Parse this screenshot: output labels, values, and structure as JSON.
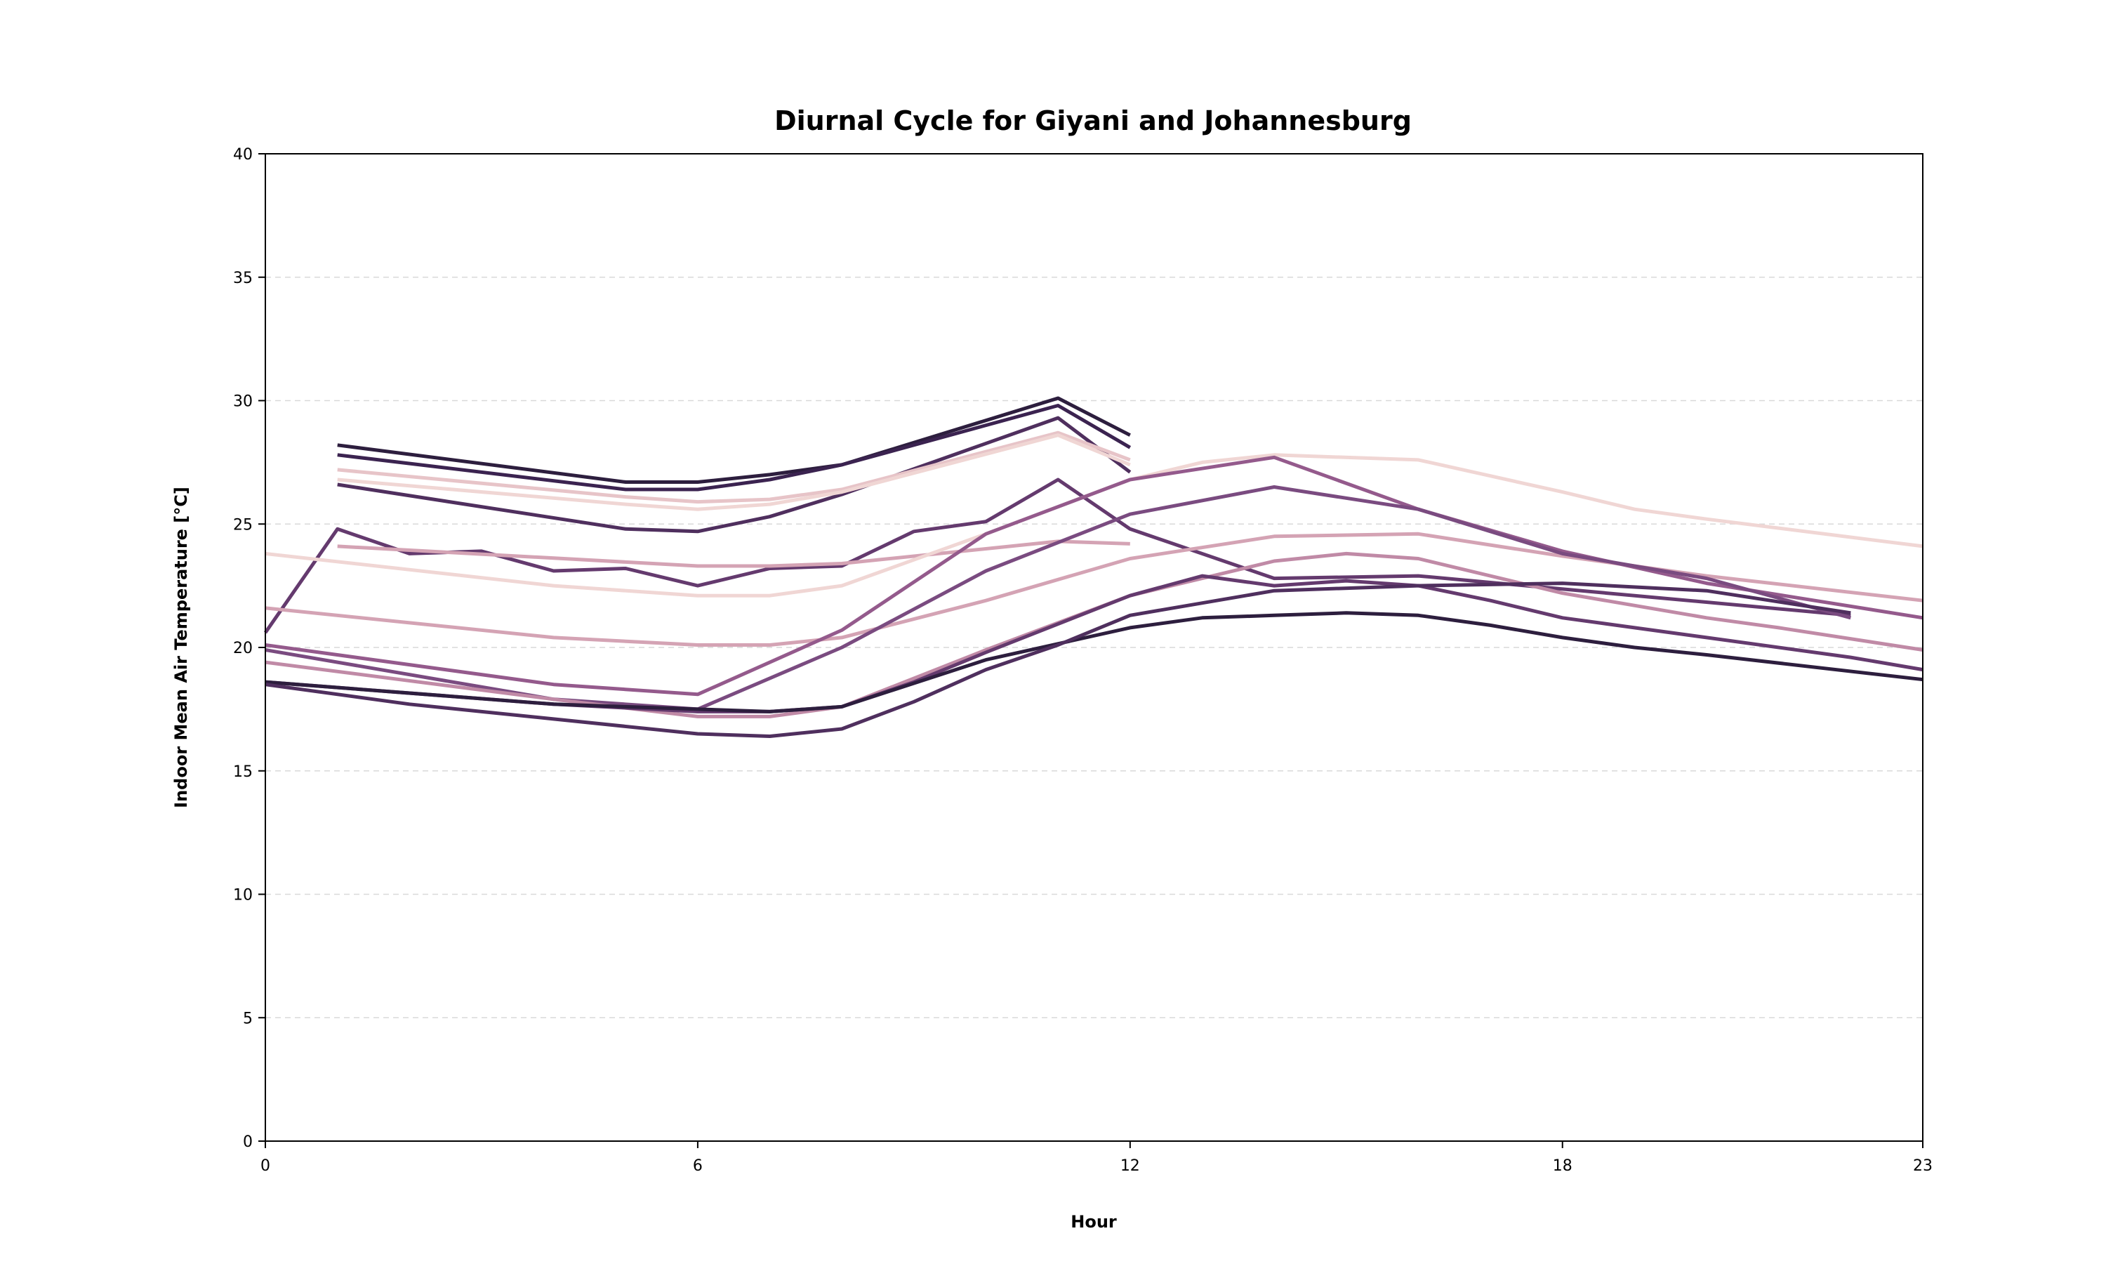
{
  "chart_data": {
    "type": "line",
    "title": "Diurnal Cycle for Giyani and Johannesburg",
    "xlabel": "Hour",
    "ylabel": "Indoor Mean Air Temperature [°C]",
    "xlim": [
      0,
      23
    ],
    "ylim": [
      0,
      40
    ],
    "xticks": [
      0,
      6,
      12,
      18,
      23
    ],
    "yticks": [
      0,
      5,
      10,
      15,
      20,
      25,
      30,
      35,
      40
    ],
    "grid": "horizontal-dashed",
    "colors": [
      "#2d1e3e",
      "#3b2350",
      "#4f2f5e",
      "#643a6e",
      "#7a4b80",
      "#945a8c",
      "#a86a95",
      "#c08aa6",
      "#d4a3b4",
      "#e7c4c8",
      "#f0d6d4"
    ],
    "series": [
      {
        "color": "#2d1e3e",
        "x": [
          1,
          5,
          6,
          7,
          8,
          11,
          12
        ],
        "y": [
          28.2,
          26.7,
          26.7,
          27.0,
          27.4,
          30.1,
          28.6
        ]
      },
      {
        "color": "#3b2350",
        "x": [
          1,
          5,
          6,
          7,
          8,
          11,
          12
        ],
        "y": [
          27.8,
          26.4,
          26.4,
          26.8,
          27.4,
          29.8,
          28.1
        ]
      },
      {
        "color": "#4f2f5e",
        "x": [
          1,
          5,
          6,
          7,
          8,
          11,
          12
        ],
        "y": [
          26.6,
          24.8,
          24.7,
          25.3,
          26.2,
          29.3,
          27.1
        ]
      },
      {
        "color": "#643a6e",
        "x": [
          0,
          1,
          2,
          3,
          4,
          5,
          6,
          7,
          8,
          9,
          10,
          11,
          12,
          14,
          16,
          22
        ],
        "y": [
          20.6,
          24.8,
          23.8,
          23.9,
          23.1,
          23.2,
          22.5,
          23.2,
          23.3,
          24.7,
          25.1,
          26.8,
          24.8,
          22.8,
          22.9,
          21.3
        ]
      },
      {
        "color": "#e7c4c8",
        "x": [
          1,
          5,
          6,
          7,
          8,
          11,
          12
        ],
        "y": [
          27.2,
          26.1,
          25.9,
          26.0,
          26.4,
          28.7,
          27.6
        ]
      },
      {
        "color": "#f0d6d4",
        "x": [
          1,
          5,
          6,
          7,
          8,
          11,
          12
        ],
        "y": [
          26.8,
          25.8,
          25.6,
          25.8,
          26.3,
          28.6,
          27.4
        ]
      },
      {
        "color": "#d4a3b4",
        "x": [
          1,
          6,
          7,
          8,
          11,
          12
        ],
        "y": [
          24.1,
          23.3,
          23.3,
          23.4,
          24.3,
          24.2
        ]
      },
      {
        "color": "#f0d6d4",
        "x": [
          0,
          4,
          6,
          7,
          8,
          10,
          12,
          13,
          14,
          16,
          18,
          19,
          20,
          23
        ],
        "y": [
          23.8,
          22.5,
          22.1,
          22.1,
          22.5,
          24.6,
          26.8,
          27.5,
          27.8,
          27.6,
          26.3,
          25.6,
          25.2,
          24.1
        ]
      },
      {
        "color": "#d4a3b4",
        "x": [
          0,
          4,
          6,
          7,
          8,
          10,
          12,
          14,
          16,
          18,
          20,
          23
        ],
        "y": [
          21.6,
          20.4,
          20.1,
          20.1,
          20.4,
          21.9,
          23.6,
          24.5,
          24.6,
          23.7,
          22.9,
          21.9
        ]
      },
      {
        "color": "#945a8c",
        "x": [
          0,
          4,
          6,
          8,
          10,
          12,
          14,
          16,
          18,
          20,
          23
        ],
        "y": [
          20.1,
          18.5,
          18.1,
          20.7,
          24.6,
          26.8,
          27.7,
          25.6,
          23.9,
          22.6,
          21.2
        ]
      },
      {
        "color": "#7a4b80",
        "x": [
          0,
          4,
          6,
          8,
          10,
          12,
          14,
          16,
          18,
          20,
          22
        ],
        "y": [
          19.9,
          17.9,
          17.5,
          20.0,
          23.1,
          25.4,
          26.5,
          25.6,
          23.8,
          22.8,
          21.2
        ]
      },
      {
        "color": "#c08aa6",
        "x": [
          0,
          4,
          6,
          7,
          8,
          10,
          12,
          14,
          15,
          16,
          18,
          20,
          21,
          23
        ],
        "y": [
          19.4,
          17.9,
          17.2,
          17.2,
          17.6,
          19.9,
          22.1,
          23.5,
          23.8,
          23.6,
          22.2,
          21.2,
          20.8,
          19.9
        ]
      },
      {
        "color": "#643a6e",
        "x": [
          0,
          4,
          6,
          7,
          8,
          9,
          10,
          12,
          13,
          14,
          15,
          16,
          17,
          18,
          20,
          22,
          23
        ],
        "y": [
          18.6,
          17.7,
          17.4,
          17.4,
          17.6,
          18.6,
          19.8,
          22.1,
          22.9,
          22.5,
          22.7,
          22.5,
          21.9,
          21.2,
          20.4,
          19.6,
          19.1
        ]
      },
      {
        "color": "#2d1e3e",
        "x": [
          0,
          4,
          5,
          6,
          7,
          8,
          10,
          12,
          13,
          14,
          15,
          16,
          17,
          18,
          19,
          20,
          23
        ],
        "y": [
          18.6,
          17.7,
          17.6,
          17.5,
          17.4,
          17.6,
          19.5,
          20.8,
          21.2,
          21.3,
          21.4,
          21.3,
          20.9,
          20.4,
          20.0,
          19.7,
          18.7
        ]
      },
      {
        "color": "#4f2f5e",
        "x": [
          0,
          2,
          4,
          6,
          7,
          8,
          9,
          10,
          11,
          12,
          14,
          16,
          18,
          20,
          22
        ],
        "y": [
          18.5,
          17.7,
          17.1,
          16.5,
          16.4,
          16.7,
          17.8,
          19.1,
          20.1,
          21.3,
          22.3,
          22.5,
          22.6,
          22.3,
          21.4
        ]
      }
    ]
  }
}
